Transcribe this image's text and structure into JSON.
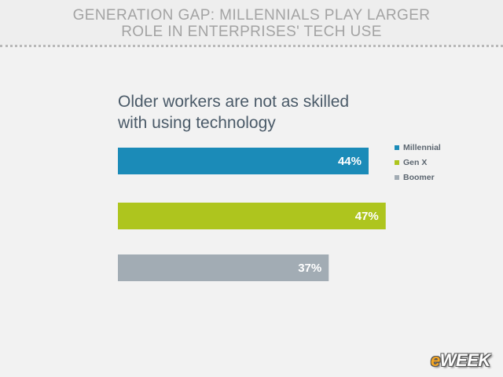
{
  "header": {
    "title_line1": "GENERATION GAP: MILLENNIALS PLAY LARGER",
    "title_line2": "ROLE IN ENTERPRISES' TECH USE"
  },
  "logo": {
    "prefix": "e",
    "rest": "WEEK"
  },
  "chart_data": {
    "type": "bar",
    "orientation": "horizontal",
    "title": "Older workers are not as skilled with using technology",
    "title_line1": "Older workers are not as skilled",
    "title_line2": "with using technology",
    "categories": [
      "Millennial",
      "Gen X",
      "Boomer"
    ],
    "values": [
      44,
      47,
      37
    ],
    "value_labels": [
      "44%",
      "47%",
      "37%"
    ],
    "colors": [
      "#1b8bb8",
      "#aec51e",
      "#a2acb4"
    ],
    "xlim": [
      0,
      100
    ],
    "legend": "right",
    "grid": false
  }
}
